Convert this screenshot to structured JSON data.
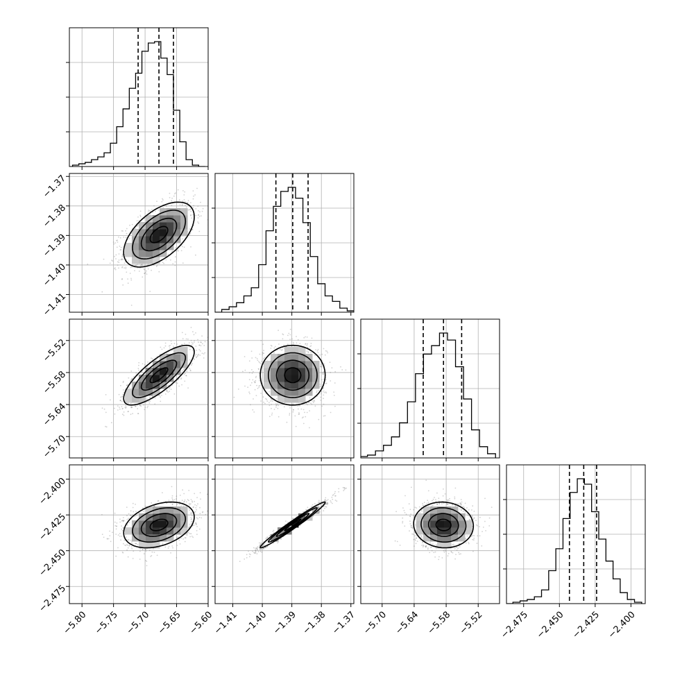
{
  "chart_data": {
    "type": "corner",
    "grid": true,
    "parameters": [
      {
        "range": [
          -5.82,
          -5.6
        ],
        "ticks": [
          -5.8,
          -5.75,
          -5.7,
          -5.65,
          -5.6
        ],
        "tick_labels": [
          "−5.80",
          "−5.75",
          "−5.70",
          "−5.65",
          "−5.60"
        ],
        "mean": -5.678,
        "sd": 0.028,
        "quantiles": [
          -5.711,
          -5.678,
          -5.655
        ]
      },
      {
        "range": [
          -1.416,
          -1.369
        ],
        "ticks": [
          -1.41,
          -1.4,
          -1.39,
          -1.38,
          -1.37
        ],
        "tick_labels": [
          "−1.41",
          "−1.40",
          "−1.39",
          "−1.38",
          "−1.37"
        ],
        "mean": -1.3897,
        "sd": 0.0055,
        "quantiles": [
          -1.3954,
          -1.3897,
          -1.3845
        ]
      },
      {
        "range": [
          -5.74,
          -5.48
        ],
        "ticks": [
          -5.7,
          -5.64,
          -5.58,
          -5.52
        ],
        "tick_labels": [
          "−5.70",
          "−5.64",
          "−5.58",
          "−5.52"
        ],
        "mean": -5.585,
        "sd": 0.028,
        "quantiles": [
          -5.623,
          -5.585,
          -5.551
        ]
      },
      {
        "range": [
          -2.487,
          -2.39
        ],
        "ticks": [
          -2.475,
          -2.45,
          -2.425,
          -2.4
        ],
        "tick_labels": [
          "−2.475",
          "−2.450",
          "−2.425",
          "−2.400"
        ],
        "mean": -2.432,
        "sd": 0.008,
        "quantiles": [
          -2.443,
          -2.433,
          -2.424
        ]
      }
    ],
    "histograms": [
      {
        "bins": [
          -5.81,
          -5.8,
          -5.79,
          -5.78,
          -5.77,
          -5.76,
          -5.75,
          -5.74,
          -5.73,
          -5.72,
          -5.71,
          -5.7,
          -5.69,
          -5.68,
          -5.67,
          -5.66,
          -5.65,
          -5.64,
          -5.63,
          -5.62,
          -5.61
        ],
        "counts": [
          1,
          2,
          3,
          5,
          7,
          10,
          17,
          29,
          42,
          57,
          68,
          84,
          90,
          91,
          79,
          67,
          41,
          18,
          5,
          1,
          0
        ]
      },
      {
        "bins": [
          -1.415,
          -1.4125,
          -1.41,
          -1.4075,
          -1.405,
          -1.4025,
          -1.4,
          -1.3975,
          -1.395,
          -1.3925,
          -1.39,
          -1.3875,
          -1.385,
          -1.3825,
          -1.38,
          -1.3775,
          -1.375,
          -1.3725,
          -1.37
        ],
        "counts": [
          0,
          2,
          4,
          7,
          12,
          18,
          35,
          60,
          78,
          89,
          92,
          84,
          66,
          41,
          21,
          12,
          8,
          3,
          1
        ]
      },
      {
        "bins": [
          -5.735,
          -5.72,
          -5.705,
          -5.69,
          -5.675,
          -5.66,
          -5.645,
          -5.63,
          -5.615,
          -5.6,
          -5.585,
          -5.57,
          -5.555,
          -5.54,
          -5.525,
          -5.51,
          -5.495
        ],
        "counts": [
          1,
          2,
          5,
          9,
          15,
          25,
          40,
          60,
          74,
          80,
          89,
          84,
          65,
          42,
          20,
          8,
          3
        ]
      },
      {
        "bins": [
          -2.485,
          -2.48,
          -2.475,
          -2.47,
          -2.465,
          -2.46,
          -2.455,
          -2.45,
          -2.445,
          -2.44,
          -2.435,
          -2.43,
          -2.425,
          -2.42,
          -2.415,
          -2.41,
          -2.405,
          -2.4,
          -2.395
        ],
        "counts": [
          0,
          1,
          2,
          3,
          5,
          10,
          24,
          40,
          62,
          81,
          91,
          87,
          67,
          47,
          31,
          18,
          8,
          3,
          1
        ]
      }
    ],
    "correlations": [
      {
        "pair": [
          1,
          0
        ],
        "rho": 0.55
      },
      {
        "pair": [
          2,
          0
        ],
        "rho": 0.78
      },
      {
        "pair": [
          2,
          1
        ],
        "rho": 0.0
      },
      {
        "pair": [
          3,
          0
        ],
        "rho": 0.35
      },
      {
        "pair": [
          3,
          1
        ],
        "rho": 0.98
      },
      {
        "pair": [
          3,
          2
        ],
        "rho": -0.05
      }
    ]
  }
}
